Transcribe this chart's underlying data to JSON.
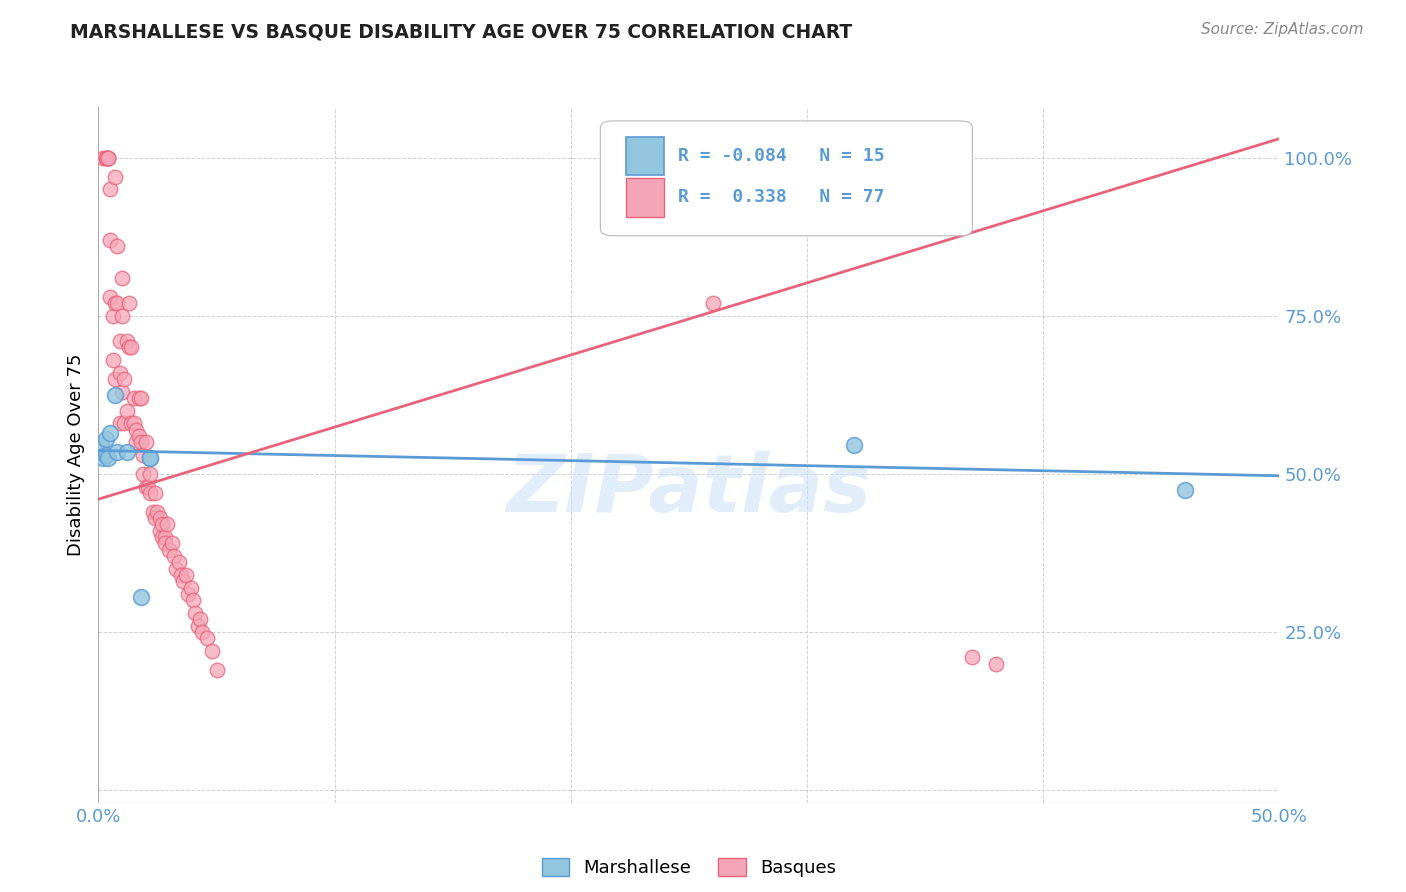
{
  "title": "MARSHALLESE VS BASQUE DISABILITY AGE OVER 75 CORRELATION CHART",
  "source": "Source: ZipAtlas.com",
  "ylabel": "Disability Age Over 75",
  "xlim": [
    0.0,
    0.5
  ],
  "ylim": [
    -0.02,
    1.08
  ],
  "legend_r_blue": "-0.084",
  "legend_n_blue": "15",
  "legend_r_pink": "0.338",
  "legend_n_pink": "77",
  "blue_color": "#92c5de",
  "pink_color": "#f4a6b8",
  "blue_line_color": "#5b9bd5",
  "pink_line_color": "#e8637a",
  "watermark": "ZIPatlas",
  "marshallese_x": [
    0.001,
    0.001,
    0.002,
    0.003,
    0.003,
    0.004,
    0.005,
    0.007,
    0.008,
    0.012,
    0.018,
    0.022,
    0.022,
    0.32,
    0.46
  ],
  "marshallese_y": [
    0.535,
    0.545,
    0.525,
    0.53,
    0.555,
    0.525,
    0.565,
    0.625,
    0.535,
    0.535,
    0.305,
    0.525,
    0.525,
    0.545,
    0.475
  ],
  "basque_x": [
    0.002,
    0.003,
    0.003,
    0.004,
    0.004,
    0.004,
    0.005,
    0.005,
    0.005,
    0.006,
    0.006,
    0.007,
    0.007,
    0.007,
    0.008,
    0.008,
    0.009,
    0.009,
    0.009,
    0.01,
    0.01,
    0.01,
    0.011,
    0.011,
    0.012,
    0.012,
    0.013,
    0.013,
    0.014,
    0.014,
    0.015,
    0.015,
    0.016,
    0.016,
    0.017,
    0.017,
    0.018,
    0.018,
    0.019,
    0.019,
    0.02,
    0.02,
    0.021,
    0.022,
    0.022,
    0.023,
    0.024,
    0.024,
    0.025,
    0.026,
    0.026,
    0.027,
    0.027,
    0.028,
    0.028,
    0.029,
    0.03,
    0.031,
    0.032,
    0.033,
    0.034,
    0.035,
    0.036,
    0.037,
    0.038,
    0.039,
    0.04,
    0.041,
    0.042,
    0.043,
    0.044,
    0.046,
    0.048,
    0.05,
    0.26,
    0.37,
    0.38
  ],
  "basque_y": [
    1.0,
    1.0,
    1.0,
    1.0,
    1.0,
    1.0,
    0.87,
    0.78,
    0.95,
    0.75,
    0.68,
    0.97,
    0.77,
    0.65,
    0.86,
    0.77,
    0.58,
    0.71,
    0.66,
    0.63,
    0.81,
    0.75,
    0.65,
    0.58,
    0.71,
    0.6,
    0.77,
    0.7,
    0.58,
    0.7,
    0.62,
    0.58,
    0.57,
    0.55,
    0.62,
    0.56,
    0.62,
    0.55,
    0.53,
    0.5,
    0.55,
    0.48,
    0.48,
    0.47,
    0.5,
    0.44,
    0.43,
    0.47,
    0.44,
    0.43,
    0.41,
    0.4,
    0.42,
    0.4,
    0.39,
    0.42,
    0.38,
    0.39,
    0.37,
    0.35,
    0.36,
    0.34,
    0.33,
    0.34,
    0.31,
    0.32,
    0.3,
    0.28,
    0.26,
    0.27,
    0.25,
    0.24,
    0.22,
    0.19,
    0.77,
    0.21,
    0.2
  ],
  "blue_trendline": [
    [
      0.0,
      0.5
    ],
    [
      0.537,
      0.497
    ]
  ],
  "pink_trendline": [
    [
      0.0,
      0.5
    ],
    [
      0.46,
      1.03
    ]
  ]
}
